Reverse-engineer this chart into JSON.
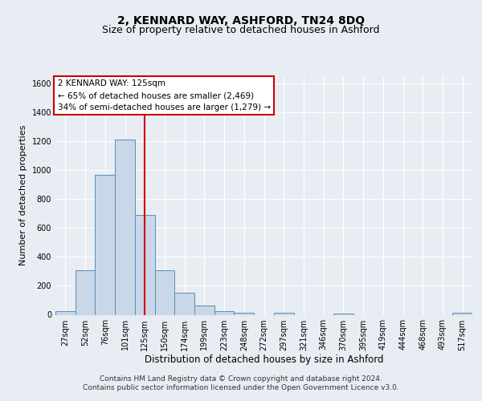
{
  "title": "2, KENNARD WAY, ASHFORD, TN24 8DQ",
  "subtitle": "Size of property relative to detached houses in Ashford",
  "xlabel": "Distribution of detached houses by size in Ashford",
  "ylabel": "Number of detached properties",
  "categories": [
    "27sqm",
    "52sqm",
    "76sqm",
    "101sqm",
    "125sqm",
    "150sqm",
    "174sqm",
    "199sqm",
    "223sqm",
    "248sqm",
    "272sqm",
    "297sqm",
    "321sqm",
    "346sqm",
    "370sqm",
    "395sqm",
    "419sqm",
    "444sqm",
    "468sqm",
    "493sqm",
    "517sqm"
  ],
  "values": [
    25,
    310,
    970,
    1210,
    690,
    310,
    150,
    65,
    25,
    15,
    0,
    15,
    0,
    0,
    10,
    0,
    0,
    0,
    0,
    0,
    15
  ],
  "bar_color": "#c8d8e8",
  "bar_edge_color": "#5b8db8",
  "reference_line_x": 4,
  "reference_line_color": "#cc0000",
  "annotation_text": "2 KENNARD WAY: 125sqm\n← 65% of detached houses are smaller (2,469)\n34% of semi-detached houses are larger (1,279) →",
  "annotation_box_color": "#ffffff",
  "annotation_box_edge_color": "#cc0000",
  "ylim": [
    0,
    1650
  ],
  "yticks": [
    0,
    200,
    400,
    600,
    800,
    1000,
    1200,
    1400,
    1600
  ],
  "footer_text": "Contains HM Land Registry data © Crown copyright and database right 2024.\nContains public sector information licensed under the Open Government Licence v3.0.",
  "background_color": "#e8edf3",
  "plot_bg_color": "#e8edf3",
  "title_fontsize": 10,
  "subtitle_fontsize": 9,
  "xlabel_fontsize": 8.5,
  "ylabel_fontsize": 8,
  "tick_fontsize": 7,
  "annotation_fontsize": 7.5,
  "footer_fontsize": 6.5
}
